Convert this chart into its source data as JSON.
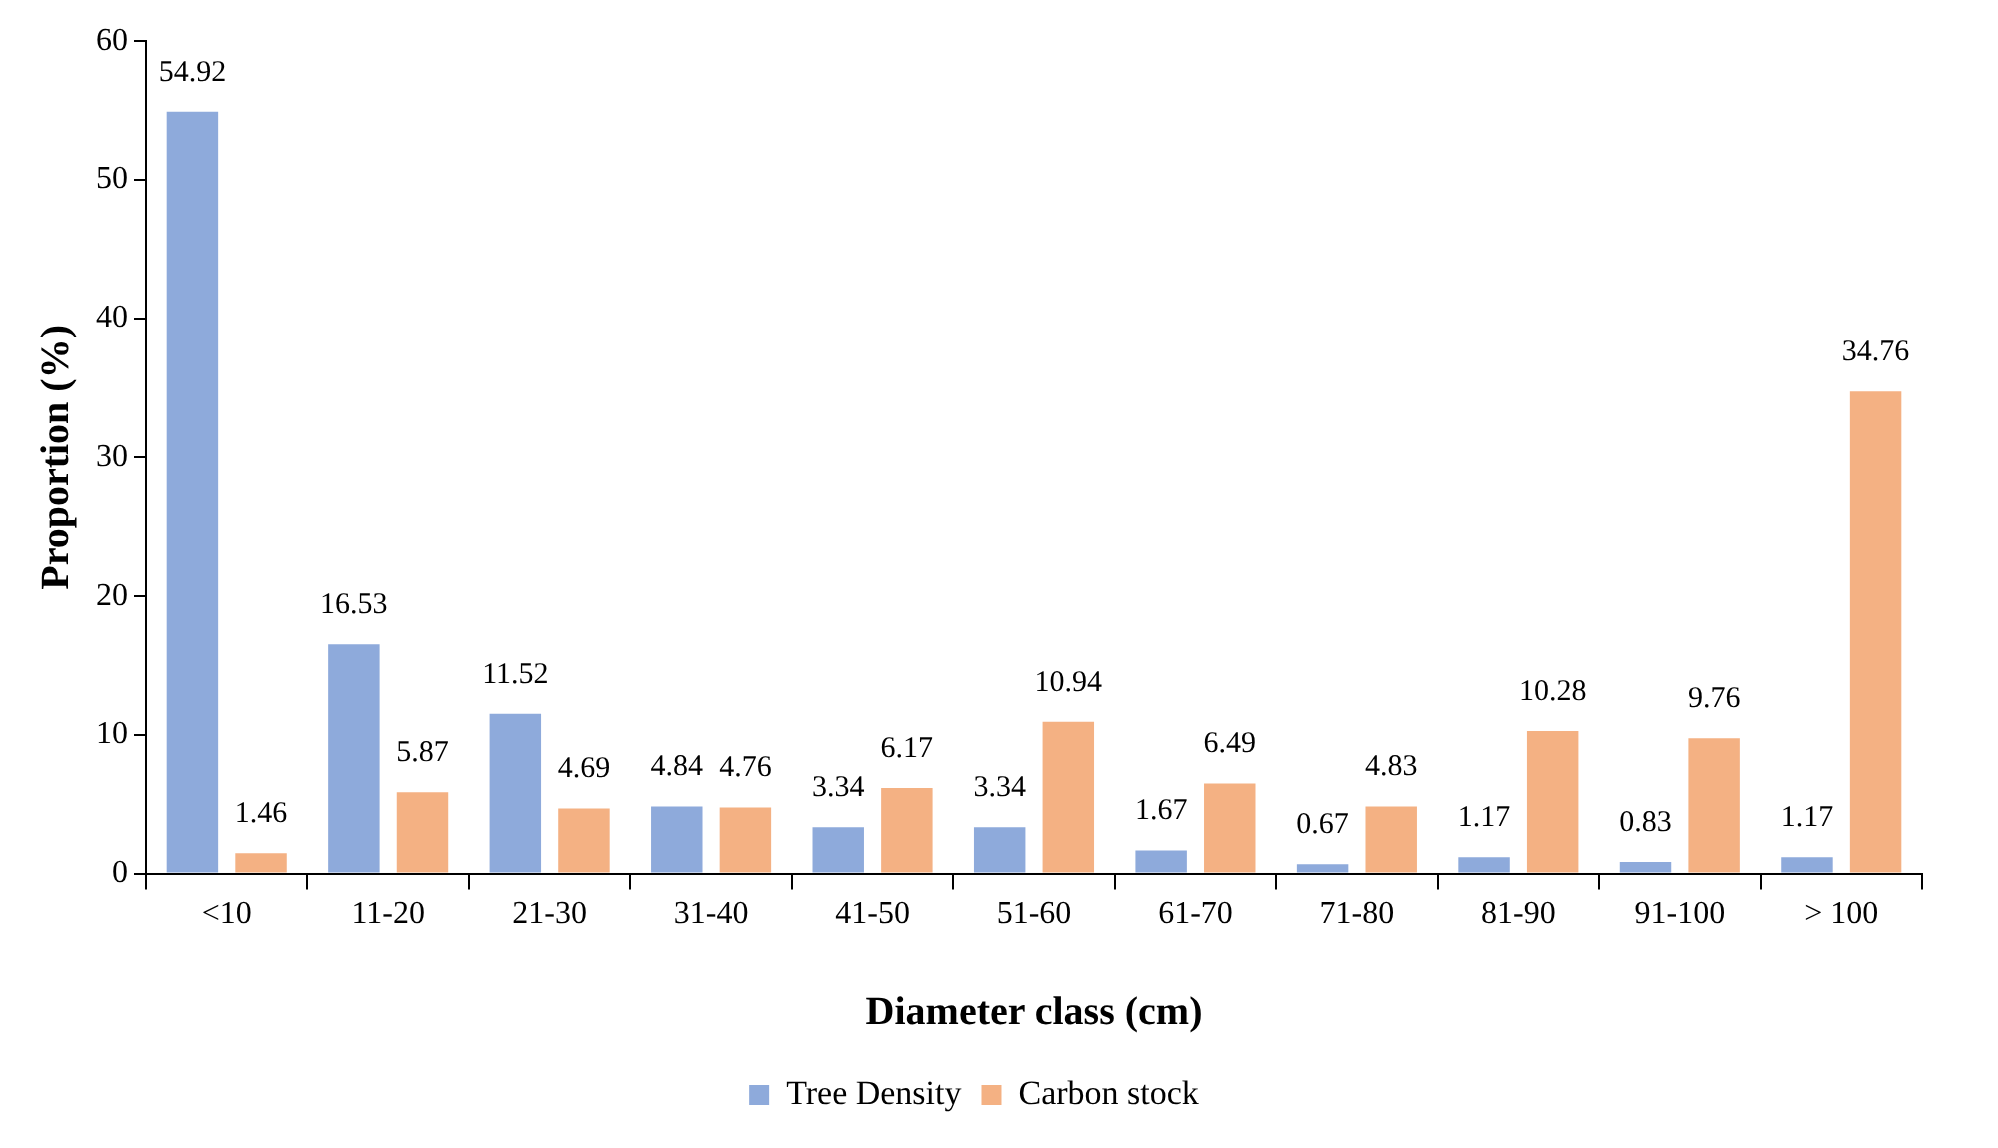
{
  "chart_data": {
    "type": "bar",
    "xlabel": "Diameter class (cm)",
    "ylabel": "Proportion (%)",
    "categories": [
      "<10",
      "11-20",
      "21-30",
      "31-40",
      "41-50",
      "51-60",
      "61-70",
      "71-80",
      "81-90",
      "91-100",
      "> 100"
    ],
    "series": [
      {
        "name": "Tree Density",
        "color": "#8eaadb",
        "values": [
          54.92,
          16.53,
          11.52,
          4.84,
          3.34,
          3.34,
          1.67,
          0.67,
          1.17,
          0.83,
          1.17
        ]
      },
      {
        "name": "Carbon stock",
        "color": "#f4b183",
        "values": [
          1.46,
          5.87,
          4.69,
          4.76,
          6.17,
          10.94,
          6.49,
          4.83,
          10.28,
          9.76,
          34.76
        ]
      }
    ],
    "ylim": [
      0,
      60
    ],
    "yticks": [
      0,
      10,
      20,
      30,
      40,
      50,
      60
    ],
    "grid": false,
    "legend": "bottom",
    "data_labels": true
  }
}
